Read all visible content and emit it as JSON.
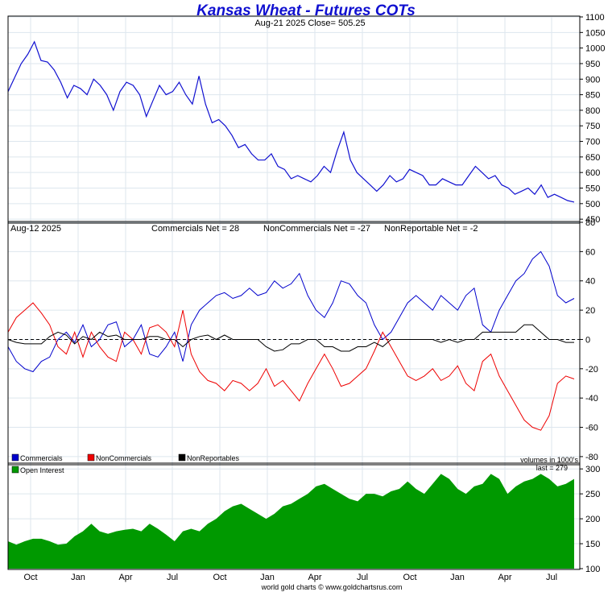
{
  "header": {
    "title": "Kansas Wheat - Futures COTs",
    "subtitle": "Aug-21  2025   Close= 505.25",
    "footer": "world gold charts © www.goldchartsrus.com"
  },
  "cot_panel": {
    "date": "Aug-12  2025",
    "commercials_net": "Commercials Net = 28",
    "noncommercials_net": "NonCommercials Net = -27",
    "nonreportable_net": "NonReportable Net = -2",
    "units_note": "volumes in 1000's"
  },
  "legend": {
    "commercials": "Commercials",
    "noncommercials": "NonCommercials",
    "nonreportables": "NonReportables",
    "open_interest": "Open Interest",
    "oi_last": "last = 279"
  },
  "colors": {
    "price": "#1010d0",
    "commercials": "#0000cc",
    "noncommercials": "#ee0000",
    "nonreportables": "#000000",
    "open_interest": "#009900"
  },
  "chart_data": [
    {
      "type": "line",
      "title": "Kansas Wheat - Futures COTs",
      "ylim": [
        440,
        1100
      ],
      "x_ticks": [
        "Oct",
        "Jan",
        "Apr",
        "Jul",
        "Oct",
        "Jan",
        "Apr",
        "Jul",
        "Oct",
        "Jan",
        "Apr",
        "Jul"
      ],
      "y_ticks": [
        450,
        500,
        550,
        600,
        650,
        700,
        750,
        800,
        850,
        900,
        950,
        1000,
        1050,
        1100
      ],
      "series": [
        {
          "name": "Price",
          "values": [
            860,
            905,
            950,
            980,
            1020,
            960,
            955,
            930,
            890,
            840,
            880,
            870,
            850,
            900,
            880,
            850,
            800,
            860,
            890,
            880,
            850,
            780,
            830,
            880,
            850,
            860,
            890,
            850,
            820,
            910,
            820,
            760,
            770,
            750,
            720,
            680,
            690,
            660,
            640,
            640,
            660,
            620,
            610,
            580,
            590,
            580,
            570,
            590,
            620,
            600,
            670,
            730,
            640,
            600,
            580,
            560,
            540,
            560,
            590,
            570,
            580,
            610,
            600,
            590,
            560,
            560,
            580,
            570,
            560,
            560,
            590,
            620,
            600,
            580,
            590,
            560,
            550,
            530,
            540,
            550,
            530,
            560,
            520,
            530,
            520,
            510,
            505
          ]
        }
      ]
    },
    {
      "type": "line",
      "ylim": [
        -85,
        80
      ],
      "y_ticks": [
        -80,
        -60,
        -40,
        -20,
        0,
        20,
        40,
        60,
        80
      ],
      "series": [
        {
          "name": "Commercials",
          "values": [
            -5,
            -15,
            -20,
            -22,
            -15,
            -12,
            0,
            5,
            -2,
            10,
            -5,
            0,
            10,
            12,
            -5,
            0,
            10,
            -10,
            -12,
            -5,
            5,
            -15,
            10,
            20,
            25,
            30,
            32,
            28,
            30,
            35,
            30,
            32,
            40,
            35,
            38,
            45,
            30,
            20,
            15,
            25,
            40,
            38,
            30,
            25,
            10,
            0,
            5,
            15,
            25,
            30,
            25,
            20,
            30,
            25,
            20,
            30,
            35,
            10,
            5,
            20,
            30,
            40,
            45,
            55,
            60,
            50,
            30,
            25,
            28
          ]
        },
        {
          "name": "NonCommercials",
          "values": [
            5,
            15,
            20,
            25,
            18,
            10,
            -5,
            -10,
            5,
            -12,
            5,
            -5,
            -12,
            -15,
            5,
            0,
            -10,
            8,
            10,
            5,
            -5,
            20,
            -10,
            -22,
            -28,
            -30,
            -35,
            -28,
            -30,
            -35,
            -30,
            -20,
            -32,
            -28,
            -35,
            -42,
            -30,
            -20,
            -10,
            -20,
            -32,
            -30,
            -25,
            -20,
            -8,
            5,
            -5,
            -15,
            -25,
            -28,
            -25,
            -20,
            -28,
            -25,
            -18,
            -30,
            -35,
            -15,
            -10,
            -25,
            -35,
            -45,
            -55,
            -60,
            -62,
            -52,
            -30,
            -25,
            -27
          ]
        },
        {
          "name": "NonReportables",
          "values": [
            0,
            -2,
            -3,
            -3,
            -3,
            2,
            5,
            3,
            -3,
            2,
            0,
            5,
            2,
            3,
            0,
            0,
            0,
            2,
            2,
            0,
            0,
            -5,
            0,
            2,
            3,
            0,
            3,
            0,
            0,
            0,
            0,
            -5,
            -8,
            -7,
            -3,
            -3,
            0,
            0,
            -5,
            -5,
            -8,
            -8,
            -5,
            -5,
            -2,
            -5,
            0,
            0,
            0,
            0,
            0,
            0,
            -2,
            0,
            -2,
            0,
            0,
            5,
            5,
            5,
            5,
            5,
            10,
            10,
            5,
            0,
            0,
            -2,
            -2
          ]
        }
      ]
    },
    {
      "type": "area",
      "ylim": [
        100,
        310
      ],
      "y_ticks": [
        100,
        150,
        200,
        250,
        300
      ],
      "series": [
        {
          "name": "Open Interest",
          "values": [
            155,
            148,
            155,
            160,
            160,
            155,
            148,
            150,
            165,
            175,
            190,
            175,
            170,
            175,
            178,
            180,
            175,
            190,
            180,
            168,
            155,
            175,
            180,
            175,
            190,
            200,
            215,
            225,
            230,
            220,
            210,
            200,
            210,
            225,
            230,
            240,
            250,
            265,
            270,
            260,
            250,
            240,
            235,
            250,
            250,
            245,
            255,
            260,
            275,
            260,
            250,
            270,
            290,
            280,
            260,
            250,
            265,
            270,
            290,
            280,
            250,
            265,
            275,
            280,
            290,
            280,
            265,
            270,
            280
          ]
        }
      ]
    }
  ]
}
